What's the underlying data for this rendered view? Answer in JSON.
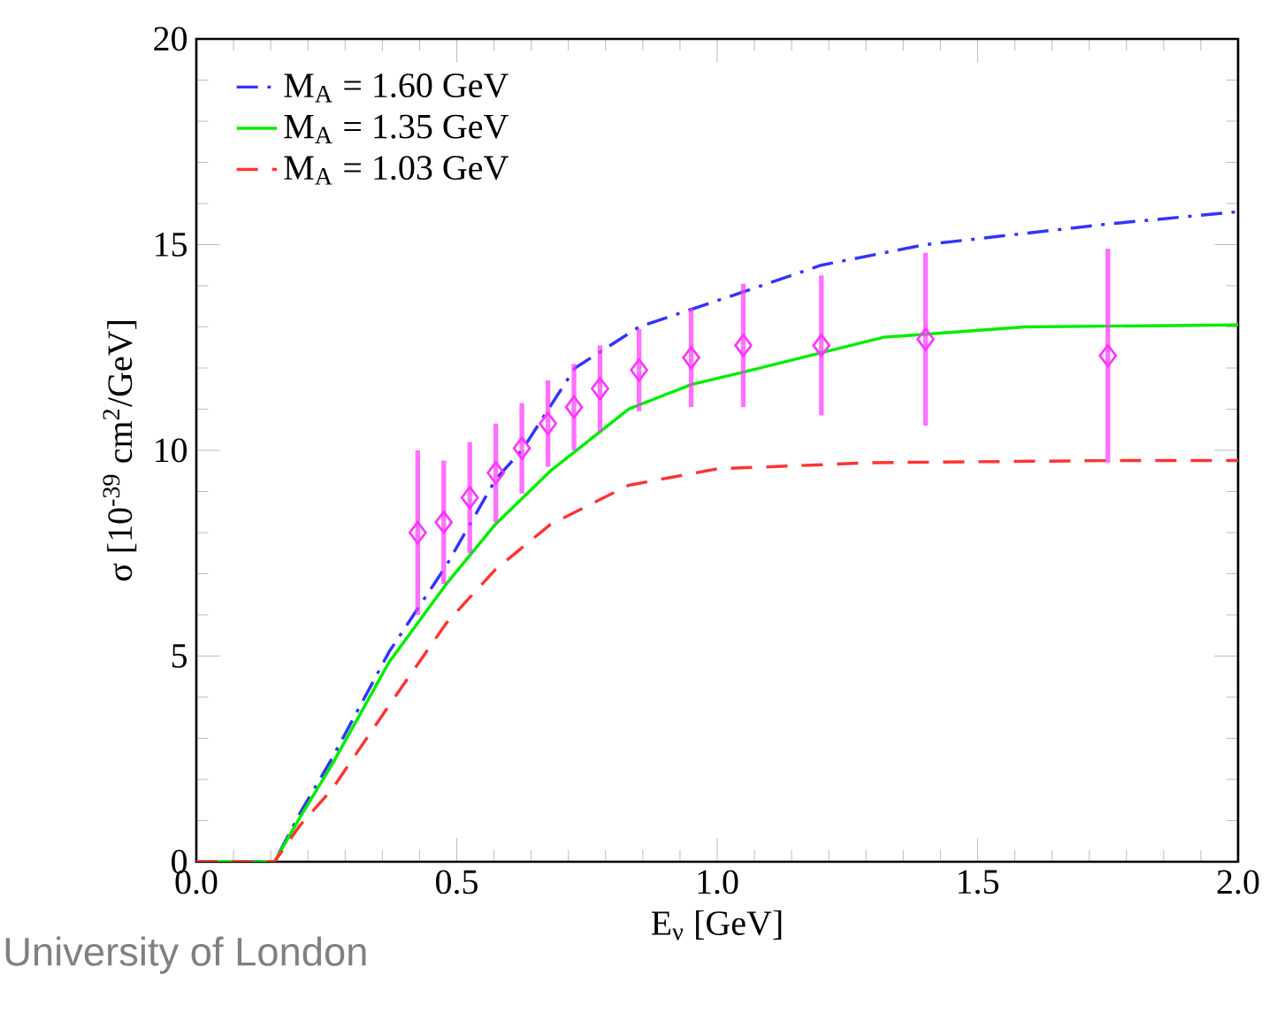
{
  "chart_data": {
    "type": "line",
    "xlabel": "E$_{ν}$ [GeV]",
    "ylabel": "σ [10$^{-39}$ cm$^{2}$/GeV]",
    "xlim": [
      0,
      2.0
    ],
    "ylim": [
      0,
      20
    ],
    "xticks": [
      {
        "value": 0,
        "label": "0.0"
      },
      0.5,
      {
        "value": 1,
        "label": "1.0"
      },
      1.5,
      {
        "value": 2,
        "label": "2.0"
      }
    ],
    "yticks": [
      0,
      5,
      10,
      15,
      20
    ],
    "grid": false,
    "legend": "top left",
    "marker": "none",
    "annotations": [
      "University of London"
    ],
    "series": [
      {
        "name": "M$_{A}$ = 1.60 GeV",
        "color": "#3333ff",
        "line_style": "dashdot",
        "x": [
          0,
          0.15,
          0.2,
          0.26,
          0.37,
          0.48,
          0.575,
          0.625,
          0.727,
          0.85,
          1.05,
          1.2,
          1.4,
          1.75,
          2.0
        ],
        "values": [
          0,
          0,
          1.2,
          2.5,
          5.1,
          7.2,
          9.3,
          10.0,
          12.0,
          13.0,
          13.85,
          14.5,
          15.0,
          15.5,
          15.8
        ]
      },
      {
        "name": "M$_{A}$ = 1.35 GeV",
        "color": "#00ee00",
        "line_style": "solid",
        "x": [
          0,
          0.15,
          0.2,
          0.26,
          0.37,
          0.48,
          0.574,
          0.68,
          0.83,
          0.95,
          1.05,
          1.32,
          1.59,
          2.0
        ],
        "values": [
          0,
          0,
          1.1,
          2.35,
          4.85,
          6.75,
          8.2,
          9.5,
          11.0,
          11.6,
          11.9,
          12.75,
          13.0,
          13.05
        ]
      },
      {
        "name": "M$_{A}$ = 1.03 GeV",
        "color": "#ff3333",
        "line_style": "dashed",
        "x": [
          0,
          0.15,
          0.2,
          0.26,
          0.37,
          0.48,
          0.574,
          0.68,
          0.83,
          1.0,
          1.3,
          1.75,
          2.0
        ],
        "values": [
          0,
          0,
          0.9,
          1.75,
          3.8,
          5.8,
          7.1,
          8.2,
          9.15,
          9.55,
          9.7,
          9.75,
          9.75
        ]
      },
      {
        "type": "scatter",
        "marker": "diamond",
        "color": "#ff33ff",
        "x": [
          0.425,
          0.475,
          0.525,
          0.575,
          0.625,
          0.675,
          0.725,
          0.775,
          0.85,
          0.95,
          1.05,
          1.2,
          1.4,
          1.75
        ],
        "values": [
          8.0,
          8.25,
          8.85,
          9.45,
          10.05,
          10.65,
          11.05,
          11.5,
          11.95,
          12.25,
          12.55,
          12.55,
          12.7,
          12.3
        ],
        "errors": [
          2.0,
          1.5,
          1.35,
          1.2,
          1.1,
          1.05,
          1.05,
          1.05,
          1.0,
          1.2,
          1.5,
          1.7,
          2.1,
          2.6
        ]
      }
    ]
  }
}
